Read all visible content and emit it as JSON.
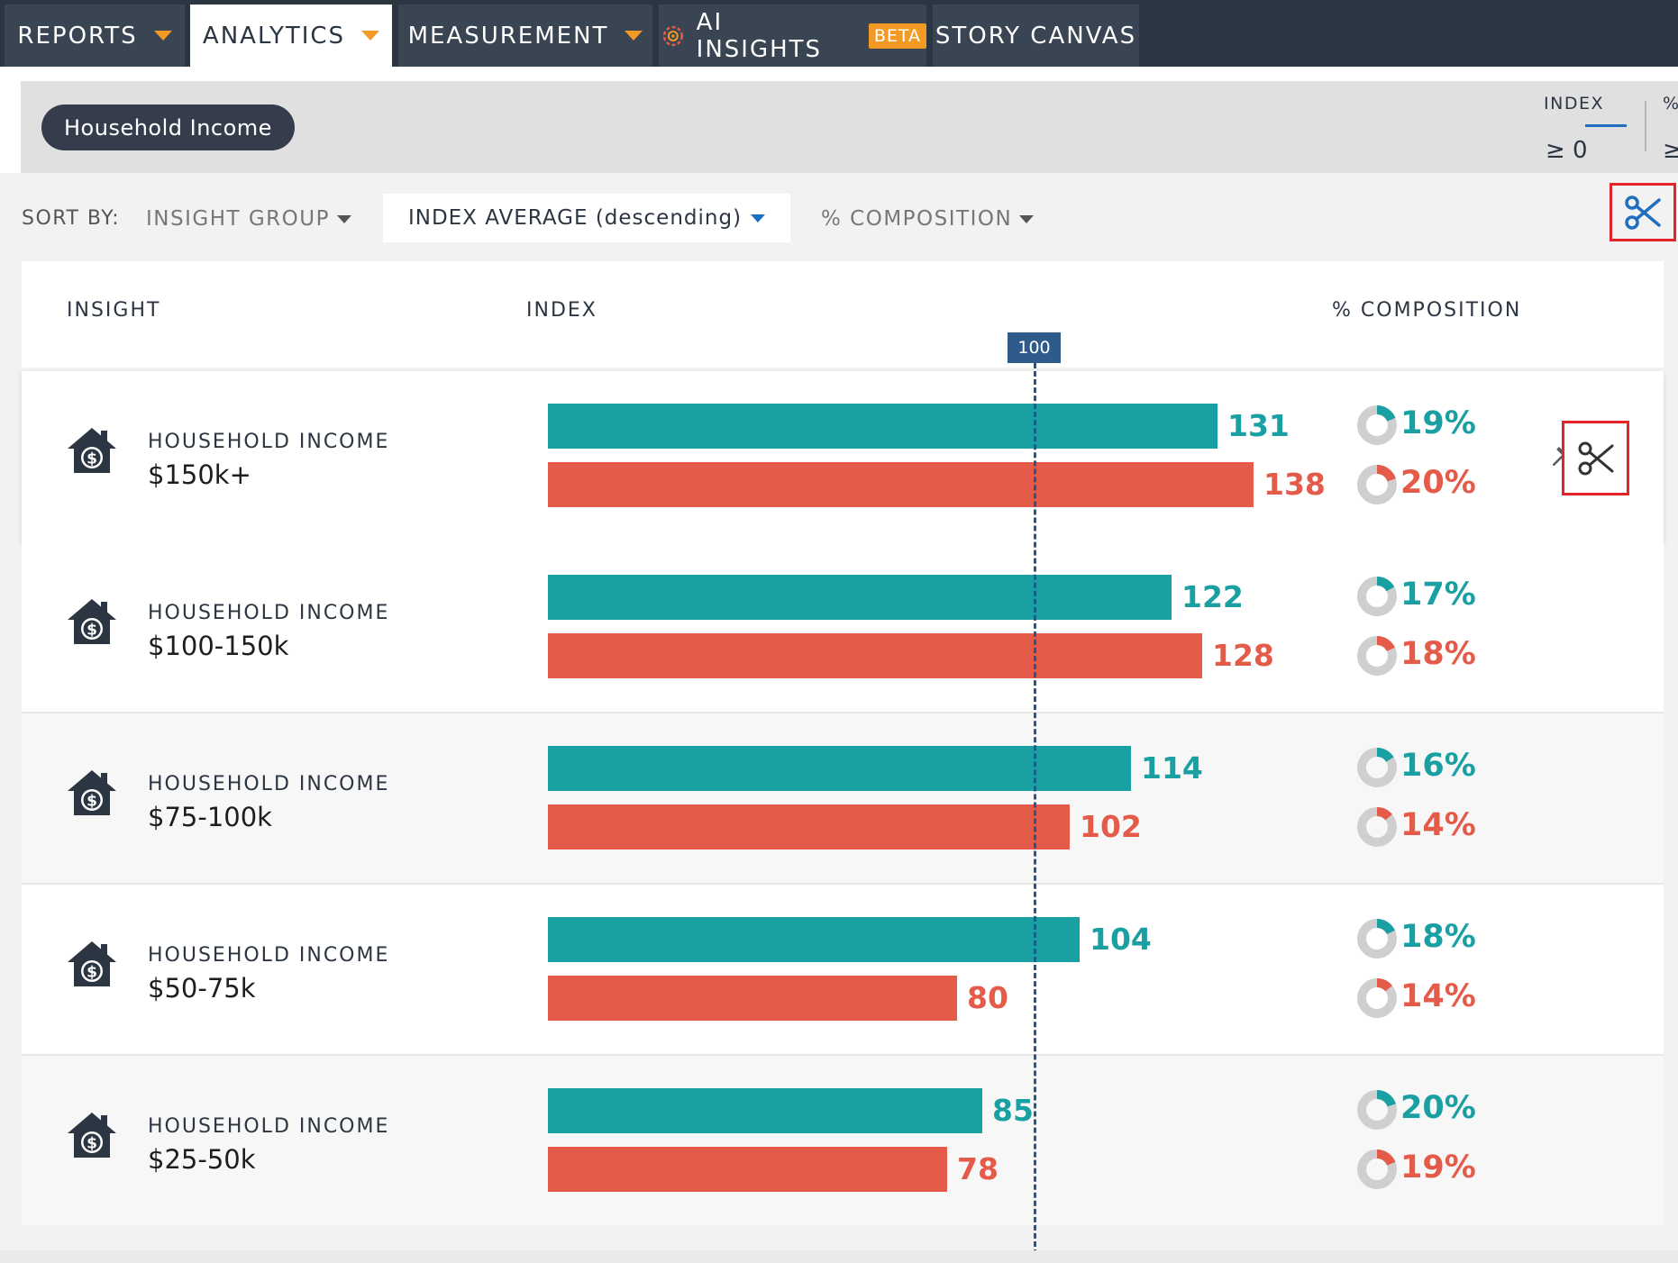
{
  "nav": {
    "tabs": [
      {
        "label": "REPORTS",
        "caret": true,
        "active": false
      },
      {
        "label": "ANALYTICS",
        "caret": true,
        "active": true
      },
      {
        "label": "MEASUREMENT",
        "caret": true,
        "active": false
      },
      {
        "label": "AI INSIGHTS",
        "badge": "BETA",
        "active": false
      },
      {
        "label": "STORY CANVAS",
        "active": false
      }
    ]
  },
  "filters": {
    "pill": "Household Income",
    "index_label": "INDEX",
    "index_value": "≥ 0",
    "pct_label": "%",
    "pct_value": "≥"
  },
  "sort": {
    "label": "SORT BY:",
    "options": [
      "INSIGHT GROUP",
      "INDEX AVERAGE (descending)",
      "% COMPOSITION"
    ],
    "active_index": 1
  },
  "table": {
    "headers": {
      "insight": "INSIGHT",
      "index": "INDEX",
      "composition": "% COMPOSITION"
    },
    "reference_label": "100",
    "rows": [
      {
        "category": "HOUSEHOLD INCOME",
        "segment": "$150k+",
        "index_a": 131,
        "index_b": 138,
        "comp_a": "19%",
        "comp_b": "20%",
        "comp_a_frac": 0.19,
        "comp_b_frac": 0.2
      },
      {
        "category": "HOUSEHOLD INCOME",
        "segment": "$100-150k",
        "index_a": 122,
        "index_b": 128,
        "comp_a": "17%",
        "comp_b": "18%",
        "comp_a_frac": 0.17,
        "comp_b_frac": 0.18
      },
      {
        "category": "HOUSEHOLD INCOME",
        "segment": "$75-100k",
        "index_a": 114,
        "index_b": 102,
        "comp_a": "16%",
        "comp_b": "14%",
        "comp_a_frac": 0.16,
        "comp_b_frac": 0.14
      },
      {
        "category": "HOUSEHOLD INCOME",
        "segment": "$50-75k",
        "index_a": 104,
        "index_b": 80,
        "comp_a": "18%",
        "comp_b": "14%",
        "comp_a_frac": 0.18,
        "comp_b_frac": 0.14
      },
      {
        "category": "HOUSEHOLD INCOME",
        "segment": "$25-50k",
        "index_a": 85,
        "index_b": 78,
        "comp_a": "20%",
        "comp_b": "19%",
        "comp_a_frac": 0.2,
        "comp_b_frac": 0.19
      }
    ]
  },
  "colors": {
    "series_a": "#1a9fa3",
    "series_b": "#e55b49",
    "accent": "#f39a24",
    "nav_bg": "#2c3542",
    "highlight": "#e3252b"
  },
  "icons": {
    "house": "house-dollar-icon",
    "pin": "pin-icon",
    "scissors": "scissors-icon"
  }
}
